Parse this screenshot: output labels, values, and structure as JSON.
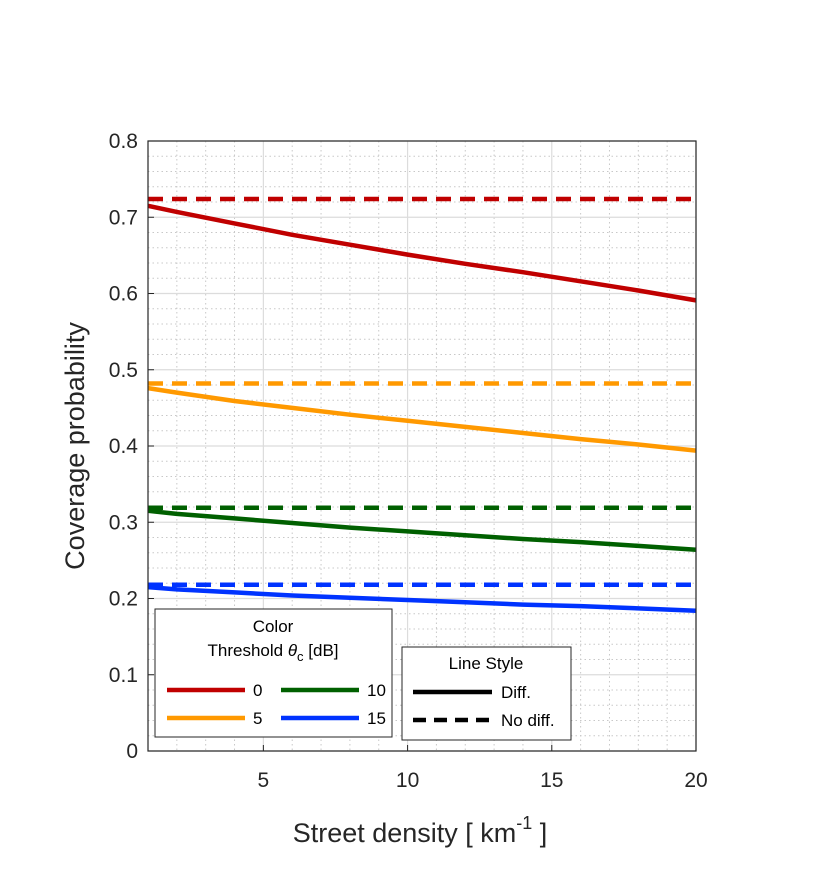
{
  "chart_data": {
    "type": "line",
    "xlabel": "Street density [ km",
    "xlabel_sup": "-1",
    "xlabel_end": " ]",
    "ylabel": "Coverage probability",
    "xlim": [
      1,
      20
    ],
    "ylim": [
      0,
      0.8
    ],
    "x_ticks": [
      5,
      10,
      15,
      20
    ],
    "y_ticks": [
      0,
      0.1,
      0.2,
      0.3,
      0.4,
      0.5,
      0.6,
      0.7,
      0.8
    ],
    "x_tick_labels": [
      "5",
      "10",
      "15",
      "20"
    ],
    "y_tick_labels": [
      "0",
      "0.1",
      "0.2",
      "0.3",
      "0.4",
      "0.5",
      "0.6",
      "0.7",
      "0.8"
    ],
    "grid": true,
    "x": [
      1,
      2,
      4,
      6,
      8,
      10,
      12,
      14,
      16,
      18,
      20
    ],
    "series": [
      {
        "name": "0",
        "style": "solid",
        "color": "#c00000",
        "values": [
          0.715,
          0.707,
          0.692,
          0.677,
          0.664,
          0.651,
          0.639,
          0.628,
          0.616,
          0.604,
          0.591
        ]
      },
      {
        "name": "0",
        "style": "dashed",
        "color": "#c00000",
        "values": [
          0.724,
          0.724,
          0.724,
          0.724,
          0.724,
          0.724,
          0.724,
          0.724,
          0.724,
          0.724,
          0.724
        ]
      },
      {
        "name": "5",
        "style": "solid",
        "color": "#ff9900",
        "values": [
          0.476,
          0.47,
          0.459,
          0.45,
          0.441,
          0.433,
          0.425,
          0.417,
          0.409,
          0.402,
          0.394
        ]
      },
      {
        "name": "5",
        "style": "dashed",
        "color": "#ff9900",
        "values": [
          0.482,
          0.482,
          0.482,
          0.482,
          0.482,
          0.482,
          0.482,
          0.482,
          0.482,
          0.482,
          0.482
        ]
      },
      {
        "name": "10",
        "style": "solid",
        "color": "#006000",
        "values": [
          0.315,
          0.311,
          0.305,
          0.299,
          0.293,
          0.288,
          0.283,
          0.278,
          0.274,
          0.269,
          0.264
        ]
      },
      {
        "name": "10",
        "style": "dashed",
        "color": "#006000",
        "values": [
          0.319,
          0.319,
          0.319,
          0.319,
          0.319,
          0.319,
          0.319,
          0.319,
          0.319,
          0.319,
          0.319
        ]
      },
      {
        "name": "15",
        "style": "solid",
        "color": "#0033ff",
        "values": [
          0.215,
          0.212,
          0.208,
          0.204,
          0.201,
          0.198,
          0.195,
          0.192,
          0.19,
          0.187,
          0.184
        ]
      },
      {
        "name": "15",
        "style": "dashed",
        "color": "#0033ff",
        "values": [
          0.218,
          0.218,
          0.218,
          0.218,
          0.218,
          0.218,
          0.218,
          0.218,
          0.218,
          0.218,
          0.218
        ]
      }
    ],
    "legend_color": {
      "title_line1": "Color",
      "title_line2": "Threshold ",
      "theta": "θ",
      "sub": "c",
      "title_end": " [dB]",
      "entries": [
        {
          "label": "0",
          "color": "#c00000"
        },
        {
          "label": "10",
          "color": "#006000"
        },
        {
          "label": "5",
          "color": "#ff9900"
        },
        {
          "label": "15",
          "color": "#0033ff"
        }
      ],
      "placement": "bottom-left"
    },
    "legend_style": {
      "title": "Line Style",
      "entries": [
        {
          "label": "Diff.",
          "style": "solid"
        },
        {
          "label": "No diff.",
          "style": "dashed"
        }
      ],
      "placement": "bottom-center"
    }
  }
}
